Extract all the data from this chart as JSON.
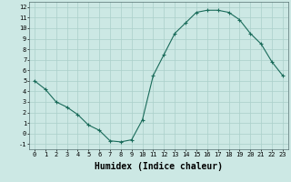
{
  "x": [
    0,
    1,
    2,
    3,
    4,
    5,
    6,
    7,
    8,
    9,
    10,
    11,
    12,
    13,
    14,
    15,
    16,
    17,
    18,
    19,
    20,
    21,
    22,
    23
  ],
  "y": [
    5.0,
    4.2,
    3.0,
    2.5,
    1.8,
    0.8,
    0.3,
    -0.7,
    -0.8,
    -0.6,
    1.3,
    5.5,
    7.5,
    9.5,
    10.5,
    11.5,
    11.7,
    11.7,
    11.5,
    10.8,
    9.5,
    8.5,
    6.8,
    5.5
  ],
  "line_color": "#1a6b5a",
  "marker": "+",
  "marker_size": 3,
  "marker_lw": 0.8,
  "line_width": 0.8,
  "bg_color": "#cce8e4",
  "grid_color": "#aacfca",
  "xlabel": "Humidex (Indice chaleur)",
  "xlabel_fontsize": 7,
  "tick_fontsize": 5,
  "xlim": [
    -0.5,
    23.5
  ],
  "ylim": [
    -1.5,
    12.5
  ],
  "yticks": [
    -1,
    0,
    1,
    2,
    3,
    4,
    5,
    6,
    7,
    8,
    9,
    10,
    11,
    12
  ],
  "xticks": [
    0,
    1,
    2,
    3,
    4,
    5,
    6,
    7,
    8,
    9,
    10,
    11,
    12,
    13,
    14,
    15,
    16,
    17,
    18,
    19,
    20,
    21,
    22,
    23
  ]
}
